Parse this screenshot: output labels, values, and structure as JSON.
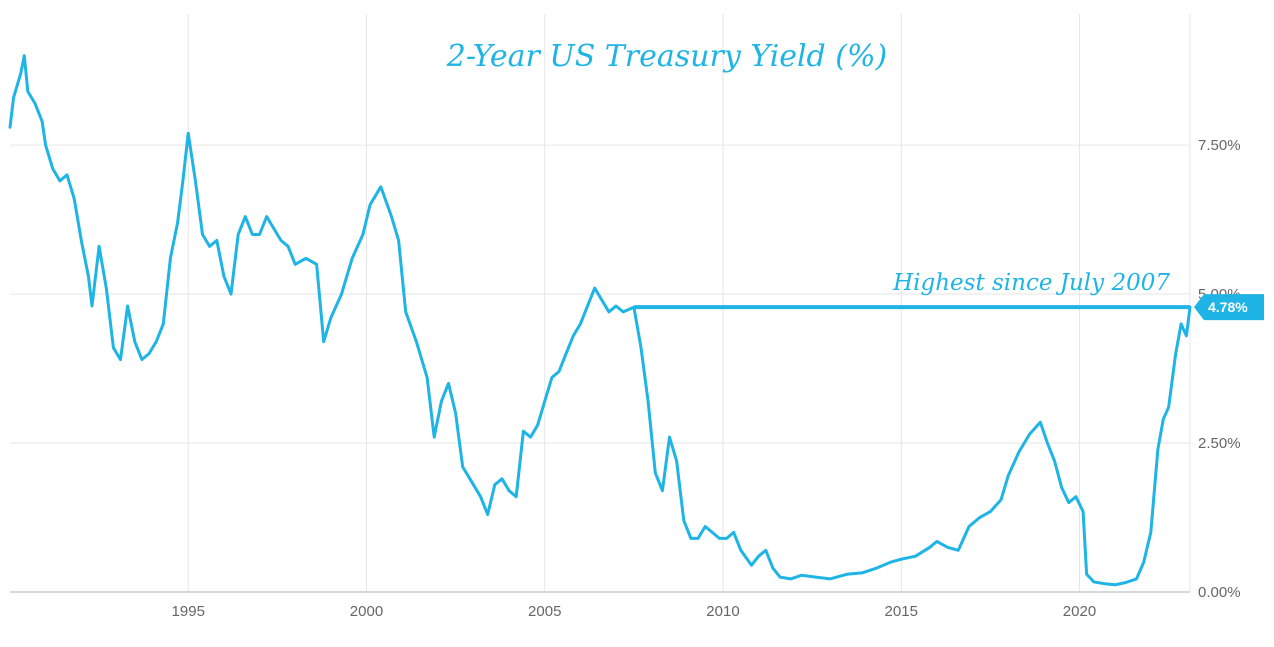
{
  "chart_data": {
    "type": "line",
    "title": "2-Year US Treasury Yield (%)",
    "xlabel": "",
    "ylabel": "",
    "xlim": [
      1990.0,
      2023.1
    ],
    "ylim": [
      0,
      9.7
    ],
    "x_ticks": [
      {
        "value": 1995,
        "label": "1995"
      },
      {
        "value": 2000,
        "label": "2000"
      },
      {
        "value": 2005,
        "label": "2005"
      },
      {
        "value": 2010,
        "label": "2010"
      },
      {
        "value": 2015,
        "label": "2015"
      },
      {
        "value": 2020,
        "label": "2020"
      }
    ],
    "y_ticks": [
      {
        "value": 0,
        "label": "0.00%"
      },
      {
        "value": 2.5,
        "label": "2.50%"
      },
      {
        "value": 5,
        "label": "5.00%"
      },
      {
        "value": 7.5,
        "label": "7.50%"
      }
    ],
    "grid": true,
    "y_axis_side": "right",
    "colors": {
      "line": "#1eb4e6",
      "grid": "#e6e6e6",
      "axis": "#cccccc",
      "tick_text": "#666666"
    },
    "annotation": {
      "text": "Highest since July 2007",
      "from_x": 2007.5,
      "to_x": 2023.1,
      "y": 4.78
    },
    "last_value_label": "4.78%",
    "series": [
      {
        "values": [
          [
            1990.0,
            7.8
          ],
          [
            1990.1,
            8.3
          ],
          [
            1990.3,
            8.7
          ],
          [
            1990.4,
            9.0
          ],
          [
            1990.5,
            8.4
          ],
          [
            1990.7,
            8.2
          ],
          [
            1990.9,
            7.9
          ],
          [
            1991.0,
            7.5
          ],
          [
            1991.2,
            7.1
          ],
          [
            1991.4,
            6.9
          ],
          [
            1991.6,
            7.0
          ],
          [
            1991.8,
            6.6
          ],
          [
            1992.0,
            5.9
          ],
          [
            1992.2,
            5.3
          ],
          [
            1992.3,
            4.8
          ],
          [
            1992.5,
            5.8
          ],
          [
            1992.7,
            5.1
          ],
          [
            1992.9,
            4.1
          ],
          [
            1993.1,
            3.9
          ],
          [
            1993.3,
            4.8
          ],
          [
            1993.5,
            4.2
          ],
          [
            1993.7,
            3.9
          ],
          [
            1993.9,
            4.0
          ],
          [
            1994.1,
            4.2
          ],
          [
            1994.3,
            4.5
          ],
          [
            1994.5,
            5.6
          ],
          [
            1994.7,
            6.2
          ],
          [
            1994.85,
            6.9
          ],
          [
            1995.0,
            7.7
          ],
          [
            1995.2,
            6.9
          ],
          [
            1995.4,
            6.0
          ],
          [
            1995.6,
            5.8
          ],
          [
            1995.8,
            5.9
          ],
          [
            1996.0,
            5.3
          ],
          [
            1996.2,
            5.0
          ],
          [
            1996.4,
            6.0
          ],
          [
            1996.6,
            6.3
          ],
          [
            1996.8,
            6.0
          ],
          [
            1997.0,
            6.0
          ],
          [
            1997.2,
            6.3
          ],
          [
            1997.4,
            6.1
          ],
          [
            1997.6,
            5.9
          ],
          [
            1997.8,
            5.8
          ],
          [
            1998.0,
            5.5
          ],
          [
            1998.3,
            5.6
          ],
          [
            1998.6,
            5.5
          ],
          [
            1998.8,
            4.2
          ],
          [
            1999.0,
            4.6
          ],
          [
            1999.3,
            5.0
          ],
          [
            1999.6,
            5.6
          ],
          [
            1999.9,
            6.0
          ],
          [
            2000.1,
            6.5
          ],
          [
            2000.4,
            6.8
          ],
          [
            2000.7,
            6.3
          ],
          [
            2000.9,
            5.9
          ],
          [
            2001.1,
            4.7
          ],
          [
            2001.4,
            4.2
          ],
          [
            2001.7,
            3.6
          ],
          [
            2001.9,
            2.6
          ],
          [
            2002.1,
            3.2
          ],
          [
            2002.3,
            3.5
          ],
          [
            2002.5,
            3.0
          ],
          [
            2002.7,
            2.1
          ],
          [
            2003.0,
            1.8
          ],
          [
            2003.2,
            1.6
          ],
          [
            2003.4,
            1.3
          ],
          [
            2003.6,
            1.8
          ],
          [
            2003.8,
            1.9
          ],
          [
            2004.0,
            1.7
          ],
          [
            2004.2,
            1.6
          ],
          [
            2004.4,
            2.7
          ],
          [
            2004.6,
            2.6
          ],
          [
            2004.8,
            2.8
          ],
          [
            2005.0,
            3.2
          ],
          [
            2005.2,
            3.6
          ],
          [
            2005.4,
            3.7
          ],
          [
            2005.6,
            4.0
          ],
          [
            2005.8,
            4.3
          ],
          [
            2006.0,
            4.5
          ],
          [
            2006.2,
            4.8
          ],
          [
            2006.4,
            5.1
          ],
          [
            2006.6,
            4.9
          ],
          [
            2006.8,
            4.7
          ],
          [
            2007.0,
            4.8
          ],
          [
            2007.2,
            4.7
          ],
          [
            2007.5,
            4.78
          ],
          [
            2007.7,
            4.1
          ],
          [
            2007.9,
            3.2
          ],
          [
            2008.1,
            2.0
          ],
          [
            2008.3,
            1.7
          ],
          [
            2008.5,
            2.6
          ],
          [
            2008.7,
            2.2
          ],
          [
            2008.9,
            1.2
          ],
          [
            2009.1,
            0.9
          ],
          [
            2009.3,
            0.9
          ],
          [
            2009.5,
            1.1
          ],
          [
            2009.7,
            1.0
          ],
          [
            2009.9,
            0.9
          ],
          [
            2010.1,
            0.9
          ],
          [
            2010.3,
            1.0
          ],
          [
            2010.5,
            0.7
          ],
          [
            2010.8,
            0.45
          ],
          [
            2011.0,
            0.6
          ],
          [
            2011.2,
            0.7
          ],
          [
            2011.4,
            0.4
          ],
          [
            2011.6,
            0.25
          ],
          [
            2011.9,
            0.22
          ],
          [
            2012.2,
            0.28
          ],
          [
            2012.6,
            0.25
          ],
          [
            2013.0,
            0.22
          ],
          [
            2013.5,
            0.3
          ],
          [
            2013.9,
            0.32
          ],
          [
            2014.3,
            0.4
          ],
          [
            2014.7,
            0.5
          ],
          [
            2015.0,
            0.55
          ],
          [
            2015.4,
            0.6
          ],
          [
            2015.8,
            0.75
          ],
          [
            2016.0,
            0.85
          ],
          [
            2016.3,
            0.75
          ],
          [
            2016.6,
            0.7
          ],
          [
            2016.9,
            1.1
          ],
          [
            2017.2,
            1.25
          ],
          [
            2017.5,
            1.35
          ],
          [
            2017.8,
            1.55
          ],
          [
            2018.0,
            1.95
          ],
          [
            2018.3,
            2.35
          ],
          [
            2018.6,
            2.65
          ],
          [
            2018.9,
            2.85
          ],
          [
            2019.1,
            2.5
          ],
          [
            2019.3,
            2.2
          ],
          [
            2019.5,
            1.75
          ],
          [
            2019.7,
            1.5
          ],
          [
            2019.9,
            1.6
          ],
          [
            2020.1,
            1.35
          ],
          [
            2020.2,
            0.3
          ],
          [
            2020.4,
            0.17
          ],
          [
            2020.7,
            0.14
          ],
          [
            2021.0,
            0.12
          ],
          [
            2021.3,
            0.16
          ],
          [
            2021.6,
            0.22
          ],
          [
            2021.8,
            0.5
          ],
          [
            2022.0,
            1.0
          ],
          [
            2022.2,
            2.4
          ],
          [
            2022.35,
            2.9
          ],
          [
            2022.5,
            3.1
          ],
          [
            2022.7,
            4.0
          ],
          [
            2022.85,
            4.5
          ],
          [
            2023.0,
            4.3
          ],
          [
            2023.1,
            4.78
          ]
        ]
      }
    ]
  }
}
